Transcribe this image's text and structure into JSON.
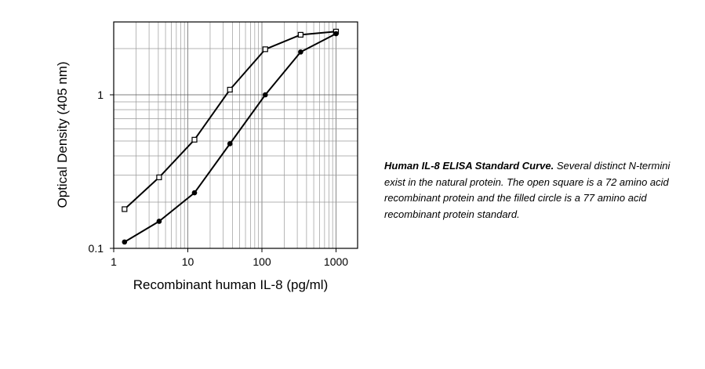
{
  "chart_data": {
    "type": "line",
    "title": "",
    "xlabel": "Recombinant human IL-8 (pg/ml)",
    "ylabel": "Optical Density (405 nm)",
    "xscale": "log",
    "yscale": "log",
    "xlim": [
      1,
      1500
    ],
    "ylim": [
      0.1,
      3
    ],
    "xticks": [
      1,
      10,
      100,
      1000
    ],
    "xtick_labels": [
      "1",
      "10",
      "100",
      "1000"
    ],
    "yticks": [
      0.1,
      1
    ],
    "ytick_labels": [
      "0.1",
      "1"
    ],
    "grid": true,
    "legend": "none",
    "series": [
      {
        "marker": "open-square",
        "x": [
          1.4,
          4.1,
          12.3,
          37,
          111,
          333,
          1000
        ],
        "y": [
          0.18,
          0.29,
          0.51,
          1.08,
          1.98,
          2.46,
          2.58
        ]
      },
      {
        "marker": "filled-circle",
        "x": [
          1.4,
          4.1,
          12.3,
          37,
          111,
          333,
          1000
        ],
        "y": [
          0.11,
          0.15,
          0.23,
          0.48,
          1.0,
          1.9,
          2.5
        ]
      }
    ]
  },
  "caption": {
    "title": "Human IL-8 ELISA Standard Curve.",
    "text": " Several distinct N-termini exist in the natural protein. The open square is a 72 amino acid recombinant protein and the filled circle is a 77 amino acid recombinant protein standard."
  }
}
